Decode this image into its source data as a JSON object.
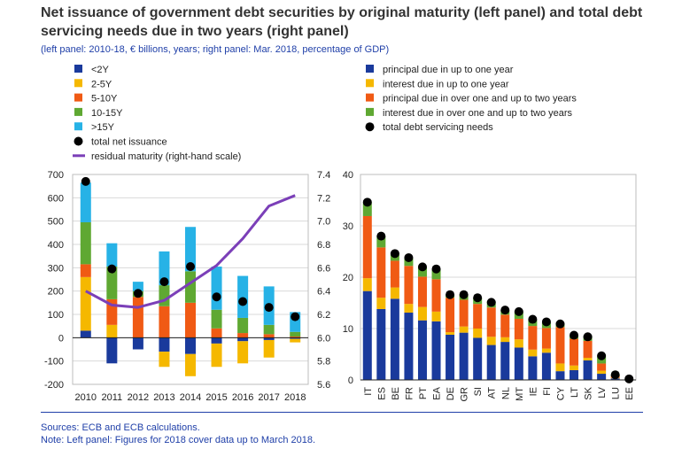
{
  "title": "Net issuance of government debt securities by original maturity (left panel) and total debt servicing needs due in two years (right panel)",
  "subtitle": "(left panel: 2010-18, € billions, years; right panel: Mar. 2018, percentage of GDP)",
  "sources": "Sources: ECB and ECB calculations.",
  "note": "Note: Left panel: Figures for 2018 cover data up to March 2018.",
  "chart_data": [
    {
      "type": "bar",
      "panel": "left",
      "categories": [
        "2010",
        "2011",
        "2012",
        "2013",
        "2014",
        "2015",
        "2016",
        "2017",
        "2018"
      ],
      "ylim": [
        -200,
        700
      ],
      "yticks": [
        -200,
        -100,
        0,
        100,
        200,
        300,
        400,
        500,
        600,
        700
      ],
      "y2lim": [
        5.6,
        7.4
      ],
      "y2ticks": [
        "5.6",
        "5.8",
        "6.0",
        "6.2",
        "6.4",
        "6.6",
        "6.8",
        "7.0",
        "7.2",
        "7.4"
      ],
      "series": [
        {
          "name": "<2Y",
          "color": "#1a3a9c",
          "values": [
            30,
            -110,
            -50,
            -60,
            -70,
            -25,
            -15,
            -10,
            -5
          ]
        },
        {
          "name": "2-5Y",
          "color": "#f5b800",
          "values": [
            230,
            55,
            0,
            -65,
            -95,
            -100,
            -95,
            -75,
            -15
          ]
        },
        {
          "name": "5-10Y",
          "color": "#f05a14",
          "values": [
            55,
            110,
            175,
            135,
            150,
            40,
            20,
            15,
            5
          ]
        },
        {
          "name": "10-15Y",
          "color": "#5fa832",
          "values": [
            180,
            140,
            25,
            90,
            135,
            80,
            65,
            40,
            20
          ]
        },
        {
          "name": ">15Y",
          "color": "#27b2e6",
          "values": [
            170,
            100,
            40,
            145,
            190,
            185,
            180,
            165,
            85
          ]
        },
        {
          "name": "total net issuance",
          "color": "#000000",
          "values": [
            670,
            295,
            190,
            240,
            305,
            175,
            155,
            130,
            90
          ]
        },
        {
          "name": "residual maturity (right-hand scale)",
          "color": "#7b3fb8",
          "values": [
            6.4,
            6.28,
            6.26,
            6.32,
            6.47,
            6.62,
            6.85,
            7.13,
            7.22
          ]
        }
      ]
    },
    {
      "type": "bar",
      "panel": "right",
      "categories": [
        "IT",
        "ES",
        "BE",
        "FR",
        "PT",
        "EA",
        "DE",
        "GR",
        "SI",
        "AT",
        "NL",
        "MT",
        "IE",
        "FI",
        "CY",
        "LT",
        "SK",
        "LV",
        "LU",
        "EE"
      ],
      "ylim": [
        0,
        40
      ],
      "yticks": [
        0,
        10,
        20,
        30,
        40
      ],
      "series": [
        {
          "name": "principal due in up to one year",
          "color": "#1a3a9c",
          "values": [
            17.3,
            13.8,
            15.8,
            13.1,
            11.6,
            11.4,
            8.8,
            9.2,
            8.2,
            6.8,
            7.4,
            6.3,
            4.6,
            5.3,
            1.7,
            1.9,
            3.8,
            1.2,
            0.3,
            0.0
          ]
        },
        {
          "name": "interest due in up to one year",
          "color": "#f5b800",
          "values": [
            2.5,
            2.2,
            2.2,
            1.7,
            2.6,
            1.9,
            0.5,
            1.2,
            1.8,
            1.6,
            0.9,
            1.6,
            1.3,
            0.8,
            1.5,
            0.9,
            0.5,
            0.6,
            0.1,
            0.0
          ]
        },
        {
          "name": "principal due in over one and up to two years",
          "color": "#f05a14",
          "values": [
            12.1,
            9.8,
            5.2,
            7.4,
            5.9,
            6.3,
            6.7,
            5.2,
            4.8,
            5.7,
            4.4,
            4.0,
            4.6,
            4.0,
            7.1,
            5.2,
            3.3,
            1.4,
            0.4,
            0.1
          ]
        },
        {
          "name": "interest due in over one and up to two years",
          "color": "#5fa832",
          "values": [
            2.7,
            2.2,
            1.5,
            1.5,
            1.9,
            2.0,
            0.6,
            1.0,
            1.2,
            1.2,
            0.8,
            1.4,
            1.2,
            1.1,
            0.6,
            0.6,
            0.9,
            1.5,
            0.2,
            0.1
          ]
        },
        {
          "name": "total debt servicing needs",
          "color": "#000000",
          "values": [
            34.6,
            28.0,
            24.6,
            23.8,
            22.0,
            21.6,
            16.6,
            16.6,
            16.0,
            15.1,
            13.6,
            13.3,
            11.8,
            11.3,
            10.9,
            8.7,
            8.4,
            4.7,
            1.0,
            0.2
          ]
        }
      ]
    }
  ]
}
